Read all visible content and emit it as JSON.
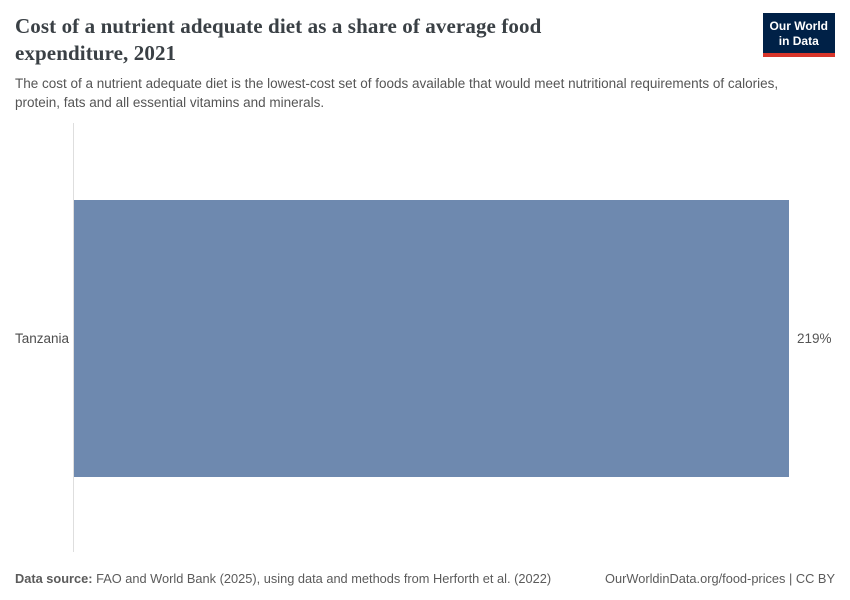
{
  "header": {
    "title": "Cost of a nutrient adequate diet as a share of average food expenditure, 2021",
    "subtitle": "The cost of a nutrient adequate diet is the lowest-cost set of foods available that would meet nutritional requirements of calories, protein, fats and all essential vitamins and minerals.",
    "logo": {
      "line1": "Our World",
      "line2": "in Data",
      "bg_color": "#002147",
      "stripe_color": "#d8352a",
      "text_color": "#ffffff"
    }
  },
  "chart_data": {
    "type": "bar",
    "orientation": "horizontal",
    "categories": [
      "Tanzania"
    ],
    "values": [
      219
    ],
    "value_labels": [
      "219%"
    ],
    "value_suffix": "%",
    "title": "Cost of a nutrient adequate diet as a share of average food expenditure, 2021",
    "xlabel": "",
    "ylabel": "",
    "xlim": [
      0,
      219
    ],
    "grid": false,
    "legend": false,
    "bar_color": "#6e89af",
    "axis_line_color": "#dedede"
  },
  "footer": {
    "source_label": "Data source:",
    "source_text": " FAO and World Bank (2025), using data and methods from Herforth et al. (2022)",
    "credit": "OurWorldinData.org/food-prices | CC BY"
  }
}
